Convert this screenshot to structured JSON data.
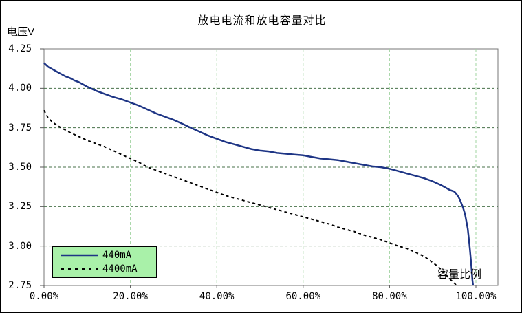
{
  "title": "放电电流和放电容量对比",
  "y_axis": {
    "label": "电压V",
    "ticks": [
      "4.25",
      "4.00",
      "3.75",
      "3.50",
      "3.25",
      "3.00",
      "2.75"
    ],
    "min": 2.75,
    "max": 4.25
  },
  "x_axis": {
    "label": "容量比例",
    "ticks": [
      "0.00%",
      "20.00%",
      "40.00%",
      "60.00%",
      "80.00%",
      "100.00%"
    ],
    "min": 0,
    "max": 100
  },
  "legend": {
    "background": "#a9f1a9",
    "border": "#000000",
    "items": [
      {
        "label": "440mA",
        "style": "solid",
        "color": "#1e3585"
      },
      {
        "label": "4400mA",
        "style": "dashed",
        "color": "#000000"
      }
    ]
  },
  "colors": {
    "plot_border": "#777777",
    "h_gridline": "#47724a",
    "v_gridline": "#a2d4a2",
    "tick_mark": "#555555",
    "outer_border": "#000000",
    "background": "#ffffff"
  },
  "chart_data": {
    "type": "line",
    "title": "放电电流和放电容量对比",
    "xlabel": "容量比例",
    "ylabel": "电压V",
    "xlim": [
      0,
      105
    ],
    "ylim": [
      2.75,
      4.25
    ],
    "x_unit": "percent",
    "y_unit": "V",
    "grid": true,
    "legend_position": "bottom-left-inside",
    "x_gridlines": [
      20,
      40,
      60,
      80,
      100
    ],
    "y_gridlines": [
      3.0,
      3.25,
      3.5,
      3.75,
      4.0
    ],
    "series": [
      {
        "name": "440mA",
        "style": "solid",
        "color": "#1e3585",
        "points": [
          [
            0,
            4.16
          ],
          [
            1,
            4.135
          ],
          [
            2,
            4.12
          ],
          [
            3,
            4.105
          ],
          [
            4,
            4.09
          ],
          [
            5,
            4.075
          ],
          [
            6,
            4.065
          ],
          [
            7,
            4.05
          ],
          [
            8,
            4.04
          ],
          [
            10,
            4.01
          ],
          [
            12,
            3.985
          ],
          [
            14,
            3.965
          ],
          [
            16,
            3.945
          ],
          [
            18,
            3.93
          ],
          [
            20,
            3.91
          ],
          [
            22,
            3.89
          ],
          [
            24,
            3.865
          ],
          [
            26,
            3.84
          ],
          [
            28,
            3.82
          ],
          [
            30,
            3.8
          ],
          [
            32,
            3.775
          ],
          [
            34,
            3.75
          ],
          [
            36,
            3.725
          ],
          [
            38,
            3.7
          ],
          [
            40,
            3.68
          ],
          [
            42,
            3.66
          ],
          [
            44,
            3.645
          ],
          [
            46,
            3.63
          ],
          [
            48,
            3.615
          ],
          [
            50,
            3.605
          ],
          [
            52,
            3.6
          ],
          [
            54,
            3.59
          ],
          [
            56,
            3.585
          ],
          [
            58,
            3.58
          ],
          [
            60,
            3.575
          ],
          [
            62,
            3.565
          ],
          [
            64,
            3.555
          ],
          [
            66,
            3.55
          ],
          [
            68,
            3.545
          ],
          [
            70,
            3.535
          ],
          [
            72,
            3.525
          ],
          [
            74,
            3.515
          ],
          [
            76,
            3.505
          ],
          [
            78,
            3.5
          ],
          [
            80,
            3.49
          ],
          [
            82,
            3.475
          ],
          [
            84,
            3.46
          ],
          [
            86,
            3.445
          ],
          [
            88,
            3.43
          ],
          [
            90,
            3.41
          ],
          [
            92,
            3.385
          ],
          [
            93,
            3.37
          ],
          [
            94,
            3.355
          ],
          [
            95,
            3.345
          ],
          [
            95.5,
            3.33
          ],
          [
            96,
            3.31
          ],
          [
            96.5,
            3.28
          ],
          [
            97,
            3.245
          ],
          [
            97.5,
            3.2
          ],
          [
            98.1,
            3.11
          ],
          [
            98.5,
            3.01
          ],
          [
            98.9,
            2.89
          ],
          [
            99.2,
            2.78
          ],
          [
            99.35,
            2.75
          ]
        ]
      },
      {
        "name": "4400mA",
        "style": "dashed",
        "color": "#000000",
        "points": [
          [
            0,
            3.86
          ],
          [
            0.5,
            3.835
          ],
          [
            1,
            3.81
          ],
          [
            2,
            3.785
          ],
          [
            3,
            3.765
          ],
          [
            4,
            3.75
          ],
          [
            5,
            3.735
          ],
          [
            6,
            3.72
          ],
          [
            8,
            3.695
          ],
          [
            10,
            3.67
          ],
          [
            12,
            3.65
          ],
          [
            14,
            3.63
          ],
          [
            16,
            3.605
          ],
          [
            18,
            3.58
          ],
          [
            20,
            3.555
          ],
          [
            22,
            3.53
          ],
          [
            24,
            3.5
          ],
          [
            26,
            3.48
          ],
          [
            28,
            3.46
          ],
          [
            30,
            3.44
          ],
          [
            32,
            3.42
          ],
          [
            34,
            3.4
          ],
          [
            36,
            3.38
          ],
          [
            38,
            3.36
          ],
          [
            40,
            3.34
          ],
          [
            42,
            3.32
          ],
          [
            44,
            3.305
          ],
          [
            46,
            3.29
          ],
          [
            48,
            3.275
          ],
          [
            50,
            3.26
          ],
          [
            52,
            3.245
          ],
          [
            54,
            3.23
          ],
          [
            56,
            3.215
          ],
          [
            58,
            3.2
          ],
          [
            60,
            3.185
          ],
          [
            62,
            3.17
          ],
          [
            64,
            3.155
          ],
          [
            66,
            3.14
          ],
          [
            68,
            3.12
          ],
          [
            70,
            3.105
          ],
          [
            72,
            3.09
          ],
          [
            74,
            3.07
          ],
          [
            76,
            3.055
          ],
          [
            78,
            3.04
          ],
          [
            80,
            3.02
          ],
          [
            82,
            3.0
          ],
          [
            84,
            2.985
          ],
          [
            86,
            2.96
          ],
          [
            88,
            2.935
          ],
          [
            90,
            2.895
          ],
          [
            91,
            2.875
          ],
          [
            92,
            2.85
          ],
          [
            93,
            2.82
          ],
          [
            94,
            2.79
          ],
          [
            95,
            2.765
          ],
          [
            95.5,
            2.75
          ]
        ]
      }
    ]
  }
}
